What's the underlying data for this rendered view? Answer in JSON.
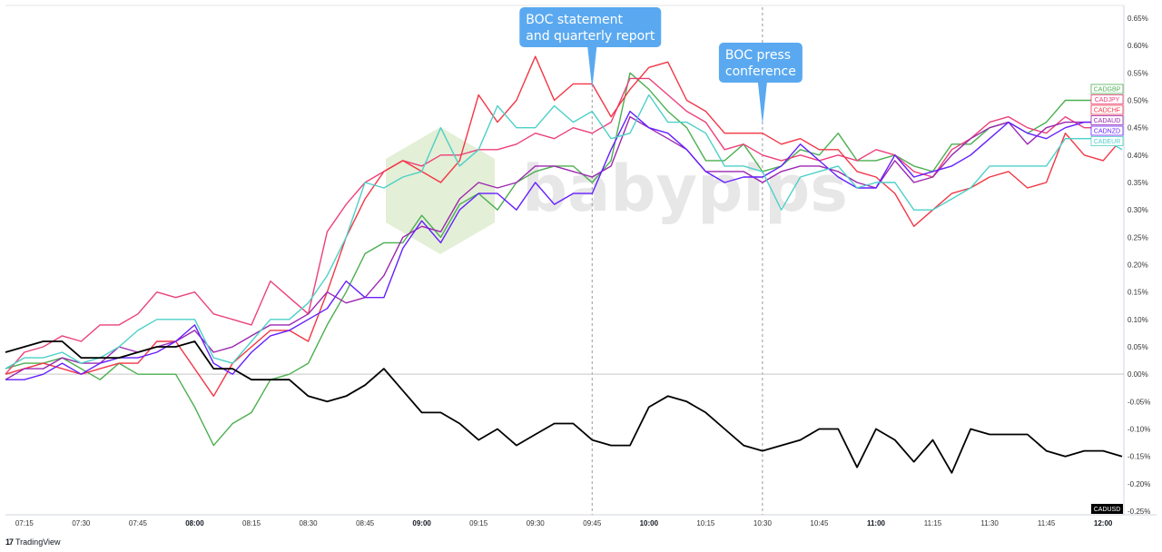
{
  "chart_data": {
    "type": "line",
    "x": [
      "07:10",
      "07:15",
      "07:20",
      "07:25",
      "07:30",
      "07:35",
      "07:40",
      "07:45",
      "07:50",
      "07:55",
      "08:00",
      "08:05",
      "08:10",
      "08:15",
      "08:20",
      "08:25",
      "08:30",
      "08:35",
      "08:40",
      "08:45",
      "08:50",
      "08:55",
      "09:00",
      "09:05",
      "09:10",
      "09:15",
      "09:20",
      "09:25",
      "09:30",
      "09:35",
      "09:40",
      "09:45",
      "09:50",
      "09:55",
      "10:00",
      "10:05",
      "10:10",
      "10:15",
      "10:20",
      "10:25",
      "10:30",
      "10:35",
      "10:40",
      "10:45",
      "10:50",
      "10:55",
      "11:00",
      "11:05",
      "11:10",
      "11:15",
      "11:20",
      "11:25",
      "11:30",
      "11:35",
      "11:40",
      "11:45",
      "11:50",
      "11:55",
      "12:00",
      "12:05"
    ],
    "x_tick_labels": [
      {
        "label": "07:15",
        "bold": false
      },
      {
        "label": "07:30",
        "bold": false
      },
      {
        "label": "07:45",
        "bold": false
      },
      {
        "label": "08:00",
        "bold": true
      },
      {
        "label": "08:15",
        "bold": false
      },
      {
        "label": "08:30",
        "bold": false
      },
      {
        "label": "08:45",
        "bold": false
      },
      {
        "label": "09:00",
        "bold": true
      },
      {
        "label": "09:15",
        "bold": false
      },
      {
        "label": "09:30",
        "bold": false
      },
      {
        "label": "09:45",
        "bold": false
      },
      {
        "label": "10:00",
        "bold": true
      },
      {
        "label": "10:15",
        "bold": false
      },
      {
        "label": "10:30",
        "bold": false
      },
      {
        "label": "10:45",
        "bold": false
      },
      {
        "label": "11:00",
        "bold": true
      },
      {
        "label": "11:15",
        "bold": false
      },
      {
        "label": "11:30",
        "bold": false
      },
      {
        "label": "11:45",
        "bold": false
      },
      {
        "label": "12:00",
        "bold": true
      }
    ],
    "y_tick_labels": [
      "0.65%",
      "0.60%",
      "0.55%",
      "0.50%",
      "0.45%",
      "0.40%",
      "0.35%",
      "0.30%",
      "0.25%",
      "0.20%",
      "0.15%",
      "0.10%",
      "0.05%",
      "0.00%",
      "-0.05%",
      "-0.10%",
      "-0.15%",
      "-0.20%",
      "-0.25%"
    ],
    "y_ticks": [
      0.65,
      0.6,
      0.55,
      0.5,
      0.45,
      0.4,
      0.35,
      0.3,
      0.25,
      0.2,
      0.15,
      0.1,
      0.05,
      0.0,
      -0.05,
      -0.1,
      -0.15,
      -0.2,
      -0.25
    ],
    "ylim": [
      -0.25,
      0.65
    ],
    "zero_line": 0.0,
    "grid": false,
    "series": [
      {
        "name": "CADGBP",
        "color": "#4caf50",
        "values": [
          0.01,
          0.02,
          0.02,
          0.03,
          0.01,
          -0.01,
          0.02,
          0.0,
          0.0,
          0.0,
          -0.06,
          -0.13,
          -0.09,
          -0.07,
          -0.01,
          0.0,
          0.02,
          0.09,
          0.15,
          0.22,
          0.24,
          0.24,
          0.29,
          0.25,
          0.31,
          0.33,
          0.3,
          0.35,
          0.37,
          0.38,
          0.38,
          0.35,
          0.39,
          0.55,
          0.52,
          0.48,
          0.45,
          0.39,
          0.39,
          0.42,
          0.37,
          0.38,
          0.41,
          0.4,
          0.44,
          0.39,
          0.39,
          0.4,
          0.38,
          0.37,
          0.42,
          0.42,
          0.45,
          0.46,
          0.44,
          0.46,
          0.5,
          0.5,
          0.5,
          0.5
        ]
      },
      {
        "name": "CADJPY",
        "color": "#ec407a",
        "values": [
          0.0,
          0.04,
          0.05,
          0.07,
          0.06,
          0.09,
          0.09,
          0.11,
          0.15,
          0.14,
          0.15,
          0.11,
          0.1,
          0.09,
          0.17,
          0.14,
          0.11,
          0.26,
          0.31,
          0.35,
          0.37,
          0.39,
          0.38,
          0.4,
          0.4,
          0.41,
          0.41,
          0.42,
          0.44,
          0.43,
          0.45,
          0.44,
          0.46,
          0.54,
          0.54,
          0.51,
          0.48,
          0.46,
          0.41,
          0.42,
          0.4,
          0.39,
          0.4,
          0.39,
          0.4,
          0.39,
          0.41,
          0.4,
          0.37,
          0.36,
          0.41,
          0.43,
          0.46,
          0.47,
          0.45,
          0.44,
          0.47,
          0.45,
          0.45,
          0.45
        ]
      },
      {
        "name": "CADCHF",
        "color": "#f23645",
        "values": [
          0.0,
          0.01,
          0.02,
          0.01,
          0.0,
          0.01,
          0.02,
          0.02,
          0.06,
          0.06,
          0.01,
          -0.04,
          0.02,
          0.05,
          0.08,
          0.08,
          0.06,
          0.15,
          0.25,
          0.32,
          0.37,
          0.39,
          0.37,
          0.35,
          0.39,
          0.51,
          0.46,
          0.5,
          0.58,
          0.5,
          0.53,
          0.53,
          0.47,
          0.52,
          0.56,
          0.57,
          0.5,
          0.48,
          0.44,
          0.44,
          0.44,
          0.42,
          0.43,
          0.41,
          0.41,
          0.37,
          0.36,
          0.33,
          0.27,
          0.3,
          0.33,
          0.34,
          0.36,
          0.37,
          0.34,
          0.35,
          0.44,
          0.4,
          0.39,
          0.43
        ]
      },
      {
        "name": "CADAUD",
        "color": "#9c27b0",
        "values": [
          -0.01,
          0.01,
          0.01,
          0.03,
          0.02,
          0.02,
          0.05,
          0.04,
          0.05,
          0.06,
          0.08,
          0.04,
          0.05,
          0.07,
          0.09,
          0.09,
          0.11,
          0.15,
          0.13,
          0.14,
          0.18,
          0.25,
          0.27,
          0.26,
          0.32,
          0.35,
          0.34,
          0.35,
          0.38,
          0.38,
          0.37,
          0.36,
          0.38,
          0.47,
          0.45,
          0.43,
          0.41,
          0.37,
          0.37,
          0.37,
          0.35,
          0.37,
          0.38,
          0.38,
          0.37,
          0.35,
          0.34,
          0.39,
          0.35,
          0.36,
          0.4,
          0.43,
          0.45,
          0.46,
          0.42,
          0.45,
          0.46,
          0.46,
          0.46,
          0.46
        ]
      },
      {
        "name": "CADNZD",
        "color": "#651fff",
        "values": [
          -0.01,
          -0.01,
          0.0,
          0.02,
          0.0,
          0.02,
          0.03,
          0.03,
          0.04,
          0.06,
          0.09,
          0.02,
          0.0,
          0.04,
          0.07,
          0.08,
          0.1,
          0.12,
          0.17,
          0.14,
          0.14,
          0.23,
          0.28,
          0.24,
          0.3,
          0.33,
          0.33,
          0.3,
          0.35,
          0.31,
          0.33,
          0.33,
          0.41,
          0.48,
          0.45,
          0.44,
          0.41,
          0.37,
          0.35,
          0.36,
          0.36,
          0.38,
          0.42,
          0.39,
          0.36,
          0.34,
          0.34,
          0.4,
          0.36,
          0.37,
          0.38,
          0.4,
          0.43,
          0.46,
          0.44,
          0.43,
          0.45,
          0.46,
          0.46,
          0.46
        ]
      },
      {
        "name": "CADEUR",
        "color": "#4dd0c8",
        "values": [
          0.01,
          0.03,
          0.03,
          0.04,
          0.02,
          0.03,
          0.05,
          0.08,
          0.1,
          0.1,
          0.1,
          0.03,
          0.02,
          0.06,
          0.1,
          0.1,
          0.13,
          0.18,
          0.25,
          0.35,
          0.34,
          0.36,
          0.37,
          0.45,
          0.38,
          0.41,
          0.49,
          0.45,
          0.45,
          0.49,
          0.46,
          0.48,
          0.43,
          0.44,
          0.51,
          0.46,
          0.46,
          0.44,
          0.38,
          0.38,
          0.37,
          0.3,
          0.36,
          0.37,
          0.38,
          0.34,
          0.35,
          0.35,
          0.3,
          0.3,
          0.32,
          0.34,
          0.38,
          0.38,
          0.38,
          0.38,
          0.43,
          0.43,
          0.43,
          0.41
        ]
      },
      {
        "name": "CADUSD",
        "color": "#000000",
        "values": [
          0.04,
          0.05,
          0.06,
          0.06,
          0.03,
          0.03,
          0.03,
          0.04,
          0.05,
          0.05,
          0.06,
          0.01,
          0.01,
          -0.01,
          -0.01,
          -0.01,
          -0.04,
          -0.05,
          -0.04,
          -0.02,
          0.01,
          -0.03,
          -0.07,
          -0.07,
          -0.09,
          -0.12,
          -0.1,
          -0.13,
          -0.11,
          -0.09,
          -0.09,
          -0.12,
          -0.13,
          -0.13,
          -0.06,
          -0.04,
          -0.05,
          -0.07,
          -0.1,
          -0.13,
          -0.14,
          -0.13,
          -0.12,
          -0.1,
          -0.1,
          -0.17,
          -0.1,
          -0.12,
          -0.16,
          -0.12,
          -0.18,
          -0.1,
          -0.11,
          -0.11,
          -0.11,
          -0.14,
          -0.15,
          -0.14,
          -0.14,
          -0.15
        ]
      }
    ],
    "series_label_order": [
      "CADGBP",
      "CADJPY",
      "CADCHF",
      "CADAUD",
      "CADNZD",
      "CADEUR"
    ],
    "annotations": [
      {
        "text_lines": [
          "BOC statement",
          "and quarterly report"
        ],
        "x": "09:45",
        "line_style": "dashed"
      },
      {
        "text_lines": [
          "BOC press",
          "conference"
        ],
        "x": "10:30",
        "line_style": "dashed"
      }
    ],
    "callout_color": "#5aa9f0"
  },
  "watermark": {
    "text": "babypips",
    "logo_color": "#e3efd6"
  },
  "footer": {
    "logo": "17",
    "brand": "TradingView"
  }
}
